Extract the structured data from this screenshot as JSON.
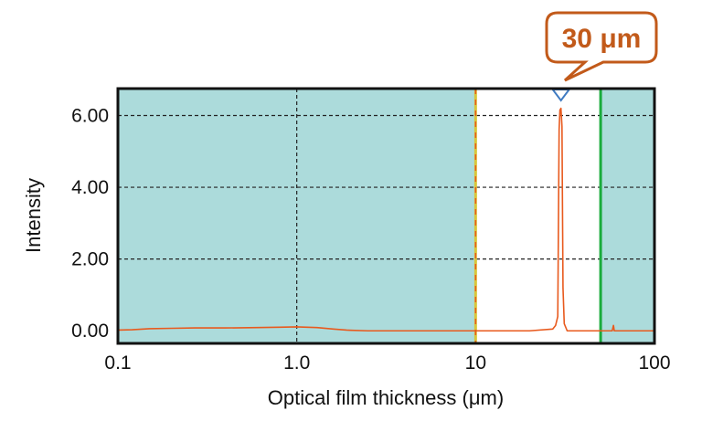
{
  "chart_data": {
    "type": "line",
    "title": "",
    "xlabel": "Optical film thickness (μm)",
    "ylabel": "Intensity",
    "x_scale": "log",
    "xlim": [
      0.1,
      100
    ],
    "ylim": [
      -0.35,
      6.75
    ],
    "x_ticks": [
      0.1,
      1,
      10,
      100
    ],
    "x_tick_labels": [
      "0.1",
      "1.0",
      "10",
      "100"
    ],
    "y_ticks": [
      0,
      2,
      4,
      6
    ],
    "y_tick_labels": [
      "0.00",
      "2.00",
      "4.00",
      "6.00"
    ],
    "grid": "dashed",
    "legend": "none",
    "highlight_window": [
      10,
      50
    ],
    "peak": {
      "x": 30,
      "y": 6.2,
      "label": "30 μm"
    },
    "series": [
      {
        "color": "#e85a1e",
        "points": [
          [
            0.1,
            0.02
          ],
          [
            0.12,
            0.03
          ],
          [
            0.15,
            0.06
          ],
          [
            0.2,
            0.07
          ],
          [
            0.27,
            0.08
          ],
          [
            0.4,
            0.08
          ],
          [
            0.6,
            0.09
          ],
          [
            0.8,
            0.1
          ],
          [
            1.0,
            0.11
          ],
          [
            1.3,
            0.09
          ],
          [
            1.6,
            0.05
          ],
          [
            1.9,
            0.02
          ],
          [
            2.5,
            0.0
          ],
          [
            5,
            0.0
          ],
          [
            10,
            0.0
          ],
          [
            20,
            0.0
          ],
          [
            27,
            0.05
          ],
          [
            28,
            0.15
          ],
          [
            28.8,
            0.4
          ],
          [
            29.3,
            5.6
          ],
          [
            29.6,
            6.15
          ],
          [
            30,
            6.2
          ],
          [
            30.4,
            5.7
          ],
          [
            30.8,
            1.2
          ],
          [
            31.3,
            0.2
          ],
          [
            32.5,
            0.0
          ],
          [
            45,
            0.0
          ],
          [
            58,
            0.0
          ],
          [
            59,
            0.15
          ],
          [
            59.6,
            0.0
          ],
          [
            100,
            0.0
          ]
        ]
      }
    ],
    "colors": {
      "plot_background": "#acdbdb",
      "window_background": "#ffffff",
      "trace": "#e85a1e",
      "window_start_line": "#d8c63a",
      "window_end_line": "#1aab3c",
      "peak_marker": "#3f7bc2",
      "callout": "#c25a1a"
    }
  }
}
